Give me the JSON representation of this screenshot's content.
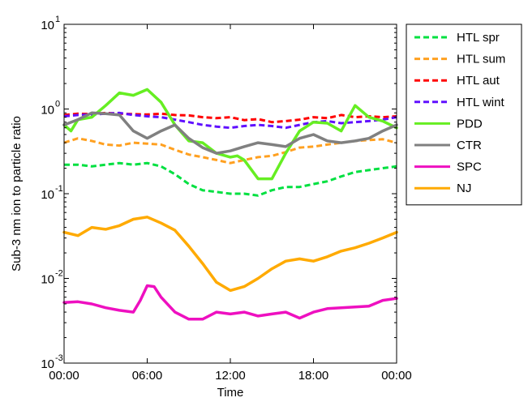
{
  "chart_data": {
    "type": "line",
    "xlabel": "Time",
    "ylabel": "Sub-3 nm ion to particle ratio",
    "y_scale": "log",
    "ylim_exp": [
      -3,
      1
    ],
    "ytick_labels": [
      {
        "base": "10",
        "exp": "-3"
      },
      {
        "base": "10",
        "exp": "-2"
      },
      {
        "base": "10",
        "exp": "-1"
      },
      {
        "base": "10",
        "exp": "0"
      },
      {
        "base": "10",
        "exp": "1"
      }
    ],
    "xlim_hours": [
      0,
      24
    ],
    "xtick_labels": [
      "00:00",
      "06:00",
      "12:00",
      "18:00",
      "00:00"
    ],
    "grid": false,
    "legend_position": "outside-right",
    "series": [
      {
        "name": "HTL spr",
        "color": "#00e040",
        "dash": "dashed",
        "hours": [
          0,
          1,
          2,
          3,
          4,
          5,
          6,
          7,
          8,
          9,
          10,
          11,
          12,
          13,
          14,
          15,
          16,
          17,
          18,
          19,
          20,
          21,
          22,
          23,
          24
        ],
        "values": [
          0.22,
          0.22,
          0.21,
          0.22,
          0.23,
          0.22,
          0.23,
          0.21,
          0.17,
          0.13,
          0.11,
          0.105,
          0.1,
          0.1,
          0.095,
          0.11,
          0.12,
          0.12,
          0.13,
          0.14,
          0.16,
          0.18,
          0.19,
          0.2,
          0.21
        ]
      },
      {
        "name": "HTL sum",
        "color": "#ffa020",
        "dash": "dashed",
        "hours": [
          0,
          1,
          2,
          3,
          4,
          5,
          6,
          7,
          8,
          9,
          10,
          11,
          12,
          13,
          14,
          15,
          16,
          17,
          18,
          19,
          20,
          21,
          22,
          23,
          24
        ],
        "values": [
          0.4,
          0.45,
          0.42,
          0.38,
          0.37,
          0.4,
          0.39,
          0.38,
          0.33,
          0.29,
          0.27,
          0.25,
          0.23,
          0.25,
          0.27,
          0.28,
          0.31,
          0.35,
          0.36,
          0.38,
          0.4,
          0.42,
          0.43,
          0.44,
          0.4
        ]
      },
      {
        "name": "HTL aut",
        "color": "#ff0000",
        "dash": "dashed",
        "hours": [
          0,
          1,
          2,
          3,
          4,
          5,
          6,
          7,
          8,
          9,
          10,
          11,
          12,
          13,
          14,
          15,
          16,
          17,
          18,
          19,
          20,
          21,
          22,
          23,
          24
        ],
        "values": [
          0.85,
          0.88,
          0.87,
          0.9,
          0.88,
          0.87,
          0.86,
          0.88,
          0.85,
          0.84,
          0.8,
          0.78,
          0.8,
          0.74,
          0.76,
          0.7,
          0.72,
          0.75,
          0.8,
          0.78,
          0.85,
          0.8,
          0.82,
          0.8,
          0.82
        ]
      },
      {
        "name": "HTL wint",
        "color": "#6010ff",
        "dash": "dashed",
        "hours": [
          0,
          1,
          2,
          3,
          4,
          5,
          6,
          7,
          8,
          9,
          10,
          11,
          12,
          13,
          14,
          15,
          16,
          17,
          18,
          19,
          20,
          21,
          22,
          23,
          24
        ],
        "values": [
          0.82,
          0.85,
          0.86,
          0.88,
          0.9,
          0.85,
          0.82,
          0.8,
          0.75,
          0.7,
          0.65,
          0.62,
          0.6,
          0.63,
          0.65,
          0.63,
          0.6,
          0.65,
          0.7,
          0.72,
          0.68,
          0.7,
          0.72,
          0.75,
          0.8
        ]
      },
      {
        "name": "PDD",
        "color": "#66ee22",
        "dash": "solid",
        "hours": [
          0,
          0.5,
          1,
          2,
          3,
          4,
          5,
          6,
          7,
          8,
          9,
          10,
          11,
          12,
          12.5,
          13,
          14,
          15,
          16,
          17,
          18,
          19,
          20,
          21,
          22,
          23,
          24
        ],
        "values": [
          0.65,
          0.55,
          0.75,
          0.8,
          1.1,
          1.55,
          1.45,
          1.7,
          1.2,
          0.65,
          0.42,
          0.4,
          0.3,
          0.27,
          0.28,
          0.25,
          0.15,
          0.15,
          0.3,
          0.55,
          0.7,
          0.68,
          0.55,
          1.1,
          0.8,
          0.72,
          0.6
        ]
      },
      {
        "name": "CTR",
        "color": "#808080",
        "dash": "solid",
        "hours": [
          0,
          1,
          2,
          3,
          4,
          5,
          6,
          7,
          8,
          9,
          10,
          11,
          12,
          13,
          14,
          15,
          16,
          17,
          18,
          19,
          20,
          21,
          22,
          23,
          24
        ],
        "values": [
          0.65,
          0.75,
          0.9,
          0.88,
          0.85,
          0.55,
          0.45,
          0.55,
          0.65,
          0.45,
          0.35,
          0.3,
          0.32,
          0.36,
          0.4,
          0.38,
          0.36,
          0.45,
          0.5,
          0.42,
          0.4,
          0.42,
          0.45,
          0.55,
          0.65
        ]
      },
      {
        "name": "SPC",
        "color": "#ee10c0",
        "dash": "solid",
        "hours": [
          0,
          1,
          2,
          3,
          4,
          5,
          5.5,
          6,
          6.5,
          7,
          8,
          9,
          10,
          11,
          12,
          13,
          14,
          15,
          16,
          17,
          18,
          19,
          20,
          21,
          22,
          23,
          24
        ],
        "values": [
          0.0052,
          0.0053,
          0.005,
          0.0045,
          0.0042,
          0.004,
          0.0055,
          0.0082,
          0.008,
          0.006,
          0.004,
          0.0033,
          0.0033,
          0.004,
          0.0038,
          0.004,
          0.0036,
          0.0038,
          0.004,
          0.0034,
          0.004,
          0.0044,
          0.0045,
          0.0046,
          0.0047,
          0.0055,
          0.0058
        ]
      },
      {
        "name": "NJ",
        "color": "#ffaa00",
        "dash": "solid",
        "hours": [
          0,
          1,
          2,
          3,
          4,
          5,
          6,
          7,
          8,
          9,
          10,
          11,
          12,
          13,
          14,
          15,
          16,
          17,
          18,
          19,
          20,
          21,
          22,
          23,
          24
        ],
        "values": [
          0.035,
          0.032,
          0.04,
          0.038,
          0.042,
          0.05,
          0.053,
          0.045,
          0.037,
          0.024,
          0.015,
          0.009,
          0.0072,
          0.008,
          0.01,
          0.013,
          0.016,
          0.017,
          0.016,
          0.018,
          0.021,
          0.023,
          0.026,
          0.03,
          0.035
        ]
      }
    ]
  }
}
